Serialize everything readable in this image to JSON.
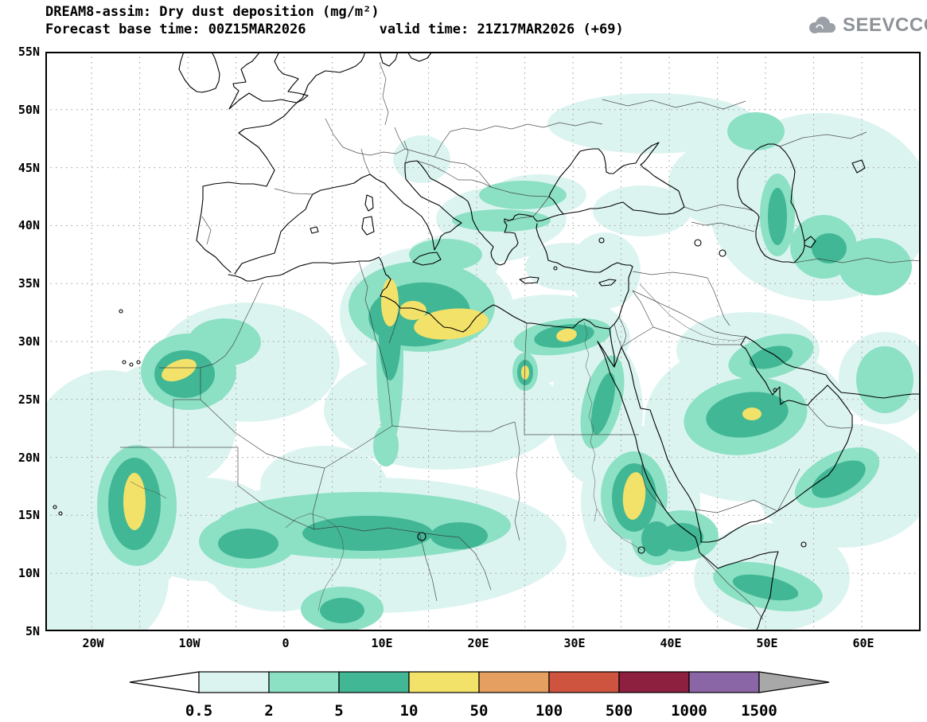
{
  "header": {
    "title": "DREAM8-assim: Dry dust deposition (mg/m²)",
    "subtitle": "Forecast base time: 00Z15MAR2026         valid time: 21Z17MAR2026 (+69)",
    "logo_text": "SEEVCCC"
  },
  "map": {
    "lat_ticks": [
      "55N",
      "50N",
      "45N",
      "40N",
      "35N",
      "30N",
      "25N",
      "20N",
      "15N",
      "10N",
      "5N"
    ],
    "lon_ticks": [
      "20W",
      "10W",
      "0",
      "10E",
      "20E",
      "30E",
      "40E",
      "50E",
      "60E"
    ]
  },
  "colorbar": {
    "labels": [
      "0.5",
      "2",
      "5",
      "10",
      "50",
      "100",
      "500",
      "1000",
      "1500"
    ],
    "segment_colors": [
      "#dcf4f0",
      "#8ce0c4",
      "#41b795",
      "#f3e26a",
      "#e5a061",
      "#cf5440",
      "#8d1f3f",
      "#8a66a6"
    ],
    "under_color": "#ffffff",
    "over_color": "#a8a8a8",
    "outline_color": "#000000"
  },
  "dust_levels": {
    "l1": "#dcf4f0",
    "l2": "#8ce0c4",
    "l3": "#41b795",
    "l4": "#f3e26a"
  }
}
